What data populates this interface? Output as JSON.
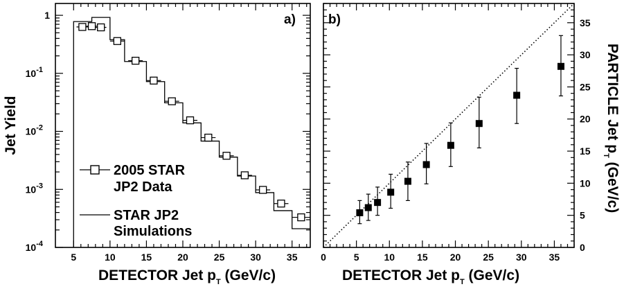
{
  "chart_data": [
    {
      "type": "line",
      "panel_label": "a)",
      "xlabel": "DETECTOR Jet p",
      "xlabel_sub": "T",
      "xlabel_unit": " (GeV/c)",
      "ylabel": "Jet Yield",
      "x_scale": "linear",
      "y_scale": "log",
      "xlim": [
        2.5,
        37.5
      ],
      "ylim": [
        0.0001,
        1.6
      ],
      "x_ticks": [
        "5",
        "10",
        "15",
        "20",
        "25",
        "30",
        "35"
      ],
      "y_ticks": [
        {
          "base": "10",
          "exp": "-4"
        },
        {
          "base": "10",
          "exp": "-3"
        },
        {
          "base": "10",
          "exp": "-2"
        },
        {
          "base": "10",
          "exp": "-1"
        },
        {
          "base": "1",
          "exp": ""
        }
      ],
      "series": [
        {
          "name": "2005 STAR JP2 Data",
          "legend_lines": [
            "2005 STAR",
            "JP2 Data"
          ],
          "marker": "open-square",
          "x": [
            6.2,
            7.5,
            8.75,
            11.0,
            13.5,
            16.0,
            18.5,
            21.0,
            23.5,
            26.0,
            28.5,
            31.0,
            33.5,
            36.25
          ],
          "xerr": [
            0.8,
            0.75,
            0.75,
            1.0,
            1.0,
            1.0,
            1.0,
            1.0,
            1.0,
            1.0,
            1.0,
            1.0,
            1.0,
            1.25
          ],
          "y": [
            0.63,
            0.65,
            0.62,
            0.36,
            0.165,
            0.075,
            0.033,
            0.0155,
            0.0078,
            0.0038,
            0.00175,
            0.00098,
            0.00057,
            0.00033
          ]
        },
        {
          "name": "STAR JP2 Simulations",
          "legend_lines": [
            "STAR JP2",
            "Simulations"
          ],
          "style": "histogram-step",
          "edges": [
            5.0,
            7.5,
            10.0,
            12.0,
            15.0,
            17.5,
            20.0,
            22.5,
            25.0,
            27.5,
            30.0,
            32.5,
            35.0,
            37.5
          ],
          "values": [
            0.78,
            0.92,
            0.38,
            0.16,
            0.072,
            0.031,
            0.014,
            0.0068,
            0.0036,
            0.0017,
            0.00088,
            0.00043,
            0.00021
          ]
        }
      ]
    },
    {
      "type": "scatter",
      "panel_label": "b)",
      "xlabel": "DETECTOR Jet p",
      "xlabel_sub": "T",
      "xlabel_unit": " (GeV/c)",
      "ylabel": "PARTICLE Jet p",
      "ylabel_sub": "T",
      "ylabel_unit": " (GeV/c)",
      "xlim": [
        0,
        38
      ],
      "ylim": [
        0,
        38
      ],
      "x_ticks": [
        "0",
        "5",
        "10",
        "15",
        "20",
        "25",
        "30",
        "35"
      ],
      "y_ticks": [
        "0",
        "5",
        "10",
        "15",
        "20",
        "25",
        "30",
        "35"
      ],
      "y_axis_side": "right",
      "diagonal": "y = x (dotted)",
      "series": [
        {
          "marker": "filled-square",
          "x": [
            5.5,
            6.8,
            8.2,
            10.2,
            12.8,
            15.6,
            19.3,
            23.6,
            29.3,
            36.0
          ],
          "y": [
            5.4,
            6.2,
            7.0,
            8.6,
            10.3,
            12.9,
            15.9,
            19.3,
            23.7,
            28.2
          ],
          "yerr_low": [
            1.7,
            2.0,
            2.0,
            2.5,
            3.0,
            3.0,
            3.3,
            3.8,
            4.4,
            4.6
          ],
          "yerr_high": [
            1.9,
            2.1,
            2.4,
            2.8,
            3.0,
            3.3,
            3.5,
            4.1,
            4.2,
            4.8
          ]
        }
      ]
    }
  ]
}
